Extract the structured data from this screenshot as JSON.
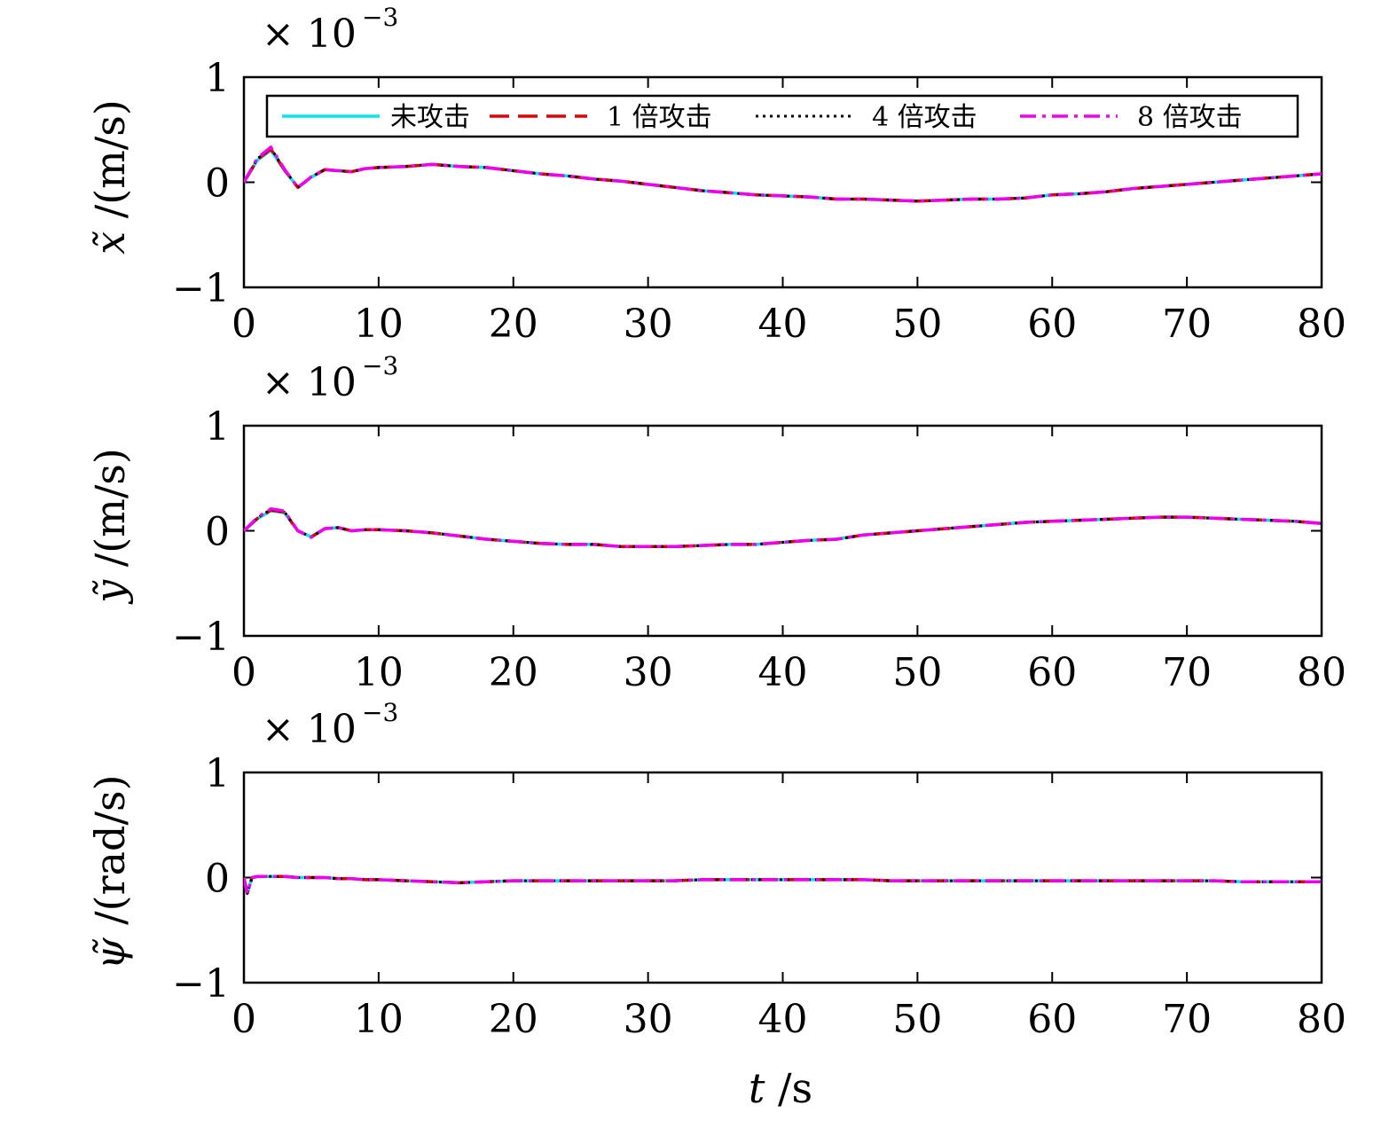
{
  "chart_data": {
    "type": "line",
    "shared_xlabel_var": "t",
    "shared_xlabel_unit": "/s",
    "x": [
      0,
      1,
      2,
      3,
      4,
      5,
      6,
      7,
      8,
      9,
      10,
      12,
      14,
      16,
      18,
      20,
      22,
      24,
      26,
      28,
      30,
      32,
      34,
      36,
      38,
      40,
      42,
      44,
      46,
      48,
      50,
      52,
      54,
      56,
      58,
      60,
      62,
      64,
      66,
      68,
      70,
      72,
      74,
      76,
      78,
      80
    ],
    "legend": {
      "placement": "top-inside",
      "entries": [
        {
          "label": "未攻击",
          "color": "#00e5ee",
          "dash": "solid"
        },
        {
          "label": "1 倍攻击",
          "color": "#e00000",
          "dash": "dashed"
        },
        {
          "label": "4 倍攻击",
          "color": "#000000",
          "dash": "dotted"
        },
        {
          "label": "8 倍攻击",
          "color": "#ee00ee",
          "dash": "dashdot"
        }
      ]
    },
    "subplots": [
      {
        "ylabel_var": "x̃",
        "ylabel_unit": "/(m/s)",
        "exponent_label": "× 10",
        "exponent_power": "−3",
        "xlim": [
          0,
          80
        ],
        "ylim": [
          -1,
          1
        ],
        "xticks": [
          "0",
          "10",
          "20",
          "30",
          "40",
          "50",
          "60",
          "70",
          "80"
        ],
        "yticks": [
          "−1",
          "0",
          "1"
        ],
        "values": [
          0,
          0.22,
          0.32,
          0.12,
          -0.05,
          0.05,
          0.12,
          0.11,
          0.1,
          0.13,
          0.14,
          0.15,
          0.17,
          0.15,
          0.14,
          0.11,
          0.08,
          0.06,
          0.03,
          0.01,
          -0.02,
          -0.05,
          -0.08,
          -0.1,
          -0.12,
          -0.13,
          -0.14,
          -0.16,
          -0.16,
          -0.17,
          -0.18,
          -0.17,
          -0.16,
          -0.16,
          -0.15,
          -0.12,
          -0.11,
          -0.09,
          -0.06,
          -0.04,
          -0.02,
          0.0,
          0.02,
          0.04,
          0.06,
          0.08
        ]
      },
      {
        "ylabel_var": "ỹ",
        "ylabel_unit": "/(m/s)",
        "exponent_label": "× 10",
        "exponent_power": "−3",
        "xlim": [
          0,
          80
        ],
        "ylim": [
          -1,
          1
        ],
        "xticks": [
          "0",
          "10",
          "20",
          "30",
          "40",
          "50",
          "60",
          "70",
          "80"
        ],
        "yticks": [
          "−1",
          "0",
          "1"
        ],
        "values": [
          0,
          0.12,
          0.2,
          0.18,
          0.0,
          -0.06,
          0.02,
          0.03,
          0.0,
          0.01,
          0.01,
          0.0,
          -0.02,
          -0.05,
          -0.08,
          -0.1,
          -0.12,
          -0.13,
          -0.13,
          -0.15,
          -0.15,
          -0.15,
          -0.14,
          -0.13,
          -0.13,
          -0.11,
          -0.09,
          -0.08,
          -0.04,
          -0.02,
          0.0,
          0.02,
          0.04,
          0.06,
          0.08,
          0.09,
          0.1,
          0.11,
          0.12,
          0.13,
          0.13,
          0.12,
          0.11,
          0.1,
          0.09,
          0.07
        ]
      },
      {
        "ylabel_var": "ψ̃",
        "ylabel_unit": "/(rad/s)",
        "exponent_label": "× 10",
        "exponent_power": "−3",
        "xlim": [
          0,
          80
        ],
        "ylim": [
          -1,
          1
        ],
        "xticks": [
          "0",
          "10",
          "20",
          "30",
          "40",
          "50",
          "60",
          "70",
          "80"
        ],
        "yticks": [
          "−1",
          "0",
          "1"
        ],
        "values": [
          0,
          0.01,
          0.01,
          0.01,
          0.0,
          0.0,
          0.0,
          -0.01,
          -0.01,
          -0.02,
          -0.02,
          -0.03,
          -0.04,
          -0.05,
          -0.04,
          -0.03,
          -0.03,
          -0.03,
          -0.03,
          -0.03,
          -0.03,
          -0.03,
          -0.02,
          -0.02,
          -0.02,
          -0.02,
          -0.02,
          -0.02,
          -0.02,
          -0.03,
          -0.03,
          -0.03,
          -0.03,
          -0.03,
          -0.03,
          -0.03,
          -0.03,
          -0.03,
          -0.03,
          -0.03,
          -0.03,
          -0.03,
          -0.04,
          -0.04,
          -0.04,
          -0.04
        ],
        "initial_dip": -0.15
      }
    ]
  }
}
